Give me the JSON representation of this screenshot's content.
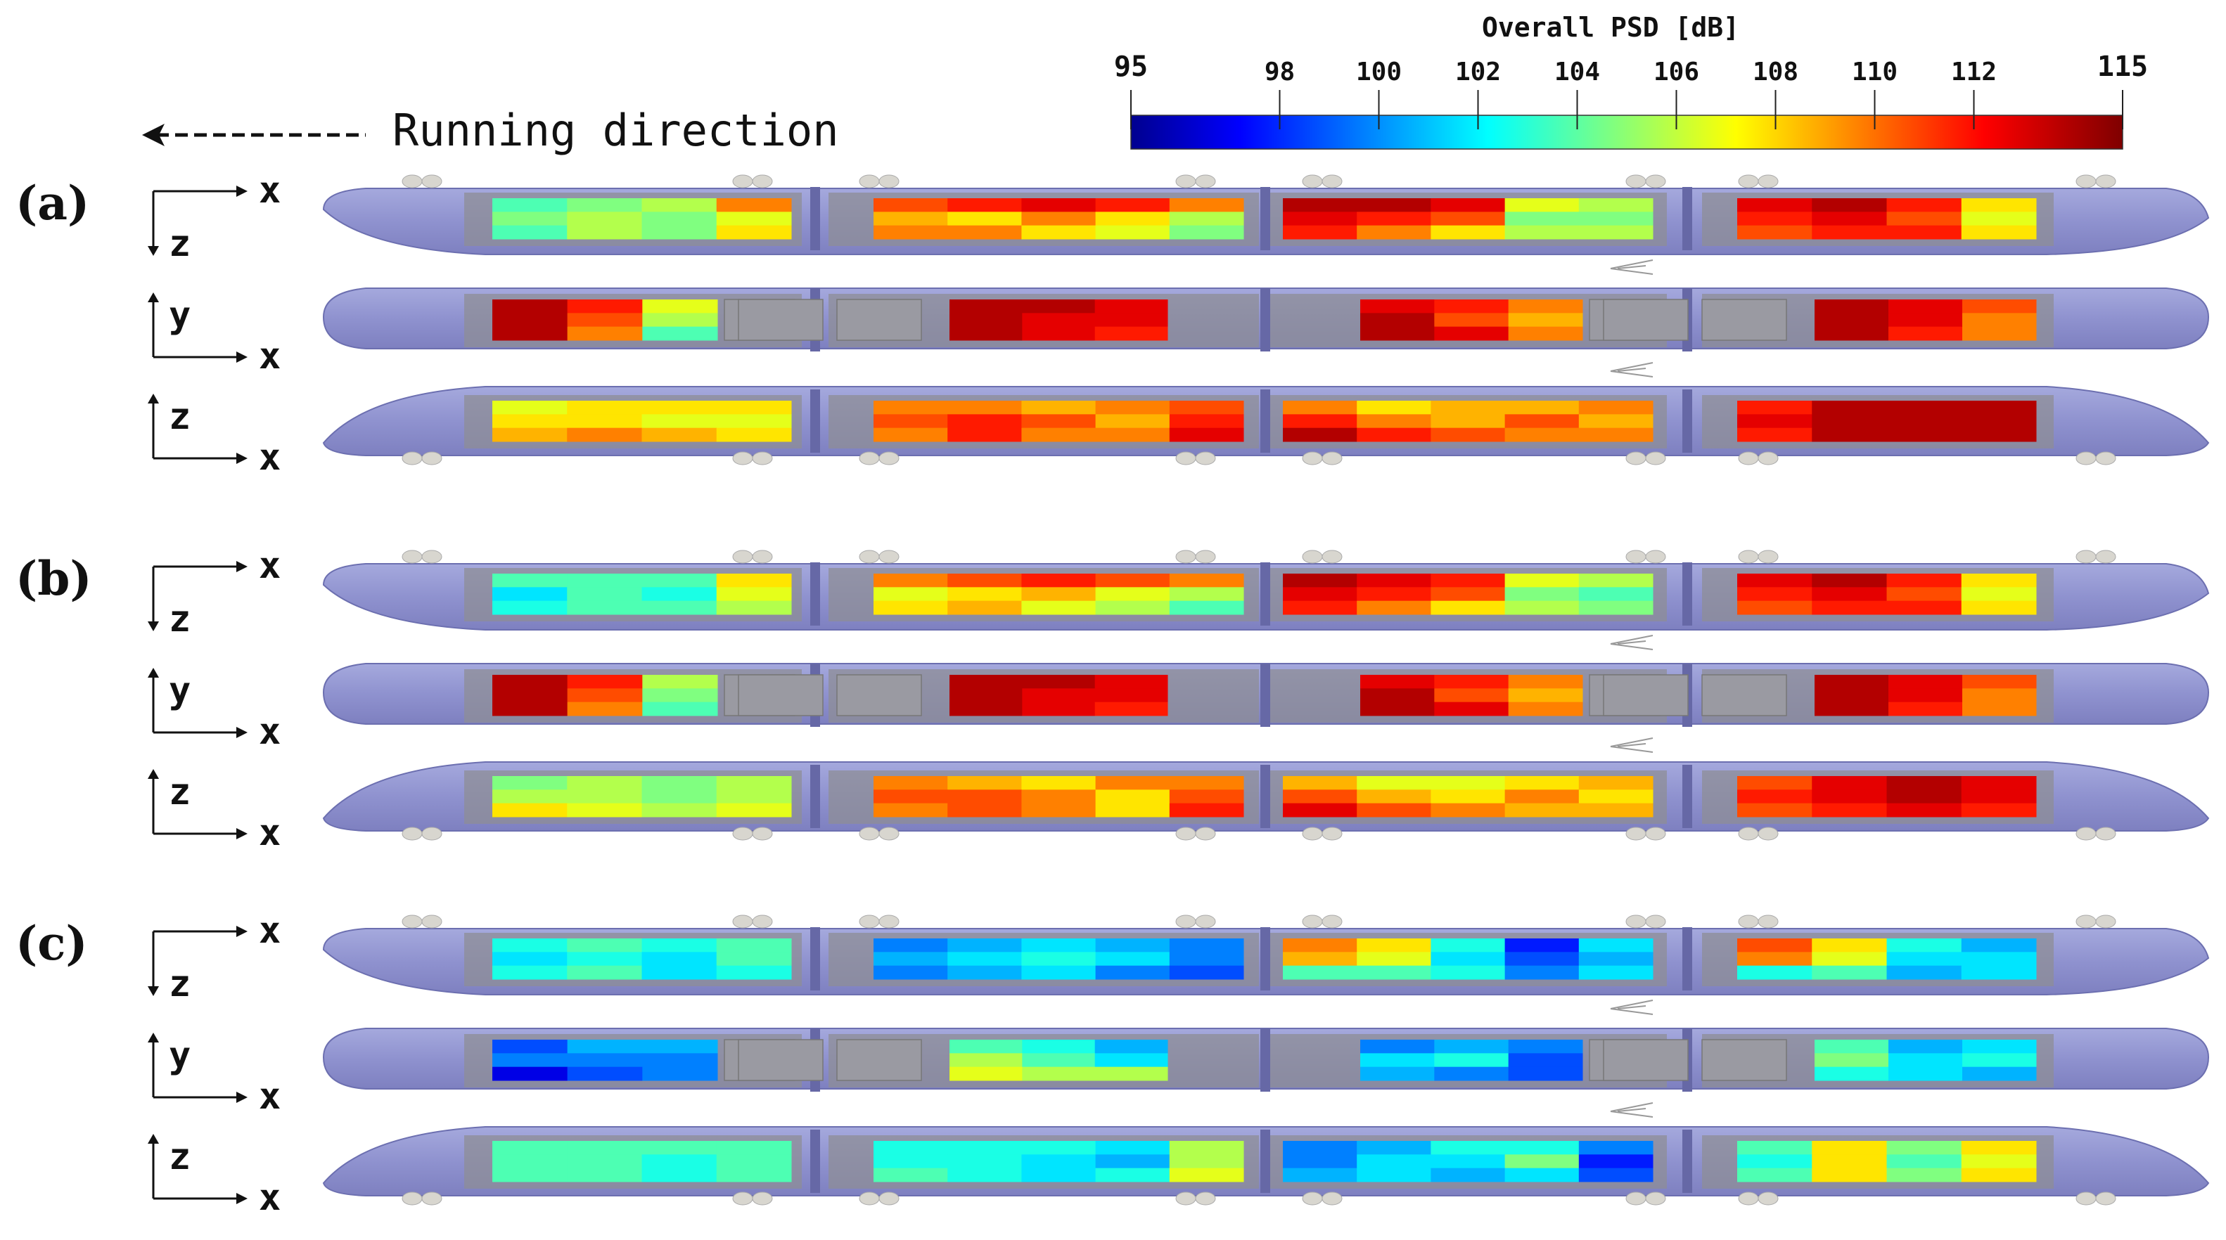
{
  "colorbar": {
    "title": "Overall PSD [dB]",
    "tick_labels": [
      "95",
      "98",
      "100",
      "102",
      "104",
      "106",
      "108",
      "110",
      "112",
      "115"
    ],
    "tick_values": [
      95,
      98,
      100,
      102,
      104,
      106,
      108,
      110,
      112,
      115
    ],
    "range": [
      95,
      115
    ],
    "colormap": "jet"
  },
  "running_direction": {
    "label": "Running direction",
    "arrow": "left"
  },
  "axis_letters": {
    "x": "x",
    "y": "y",
    "z": "z"
  },
  "panels": [
    {
      "label": "(a)",
      "views": [
        {
          "name": "side-top",
          "axes": {
            "horizontal": "x",
            "vertical": "z",
            "vertical_dir": "down"
          },
          "cars": [
            {
              "rows": [
                [
                  104,
                  105,
                  106,
                  110
                ],
                [
                  105,
                  106,
                  105,
                  107
                ],
                [
                  104,
                  106,
                  105,
                  108
                ]
              ]
            },
            {
              "rows": [
                [
                  111,
                  112,
                  113,
                  112,
                  110
                ],
                [
                  109,
                  108,
                  110,
                  108,
                  106
                ],
                [
                  110,
                  110,
                  108,
                  107,
                  105
                ]
              ]
            },
            {
              "rows": [
                [
                  114,
                  114,
                  113,
                  107,
                  106
                ],
                [
                  113,
                  112,
                  111,
                  105,
                  105
                ],
                [
                  112,
                  110,
                  108,
                  106,
                  106
                ]
              ]
            },
            {
              "rows": [
                [
                  113,
                  114,
                  112,
                  108
                ],
                [
                  112,
                  113,
                  111,
                  107
                ],
                [
                  111,
                  112,
                  112,
                  108
                ]
              ]
            }
          ]
        },
        {
          "name": "top",
          "axes": {
            "horizontal": "x",
            "vertical": "y",
            "vertical_dir": "up"
          },
          "cars": [
            {
              "layout": "front",
              "rows": [
                [
                  114,
                  112,
                  107
                ],
                [
                  114,
                  111,
                  106
                ],
                [
                  114,
                  110,
                  104
                ]
              ]
            },
            {
              "layout": "rear",
              "rows": [
                [
                  114,
                  114,
                  113
                ],
                [
                  114,
                  113,
                  113
                ],
                [
                  114,
                  113,
                  112
                ]
              ]
            },
            {
              "layout": "front",
              "rows": [
                [
                  113,
                  112,
                  110
                ],
                [
                  114,
                  111,
                  109
                ],
                [
                  114,
                  113,
                  110
                ]
              ]
            },
            {
              "layout": "rear",
              "rows": [
                [
                  114,
                  113,
                  111
                ],
                [
                  114,
                  113,
                  110
                ],
                [
                  114,
                  112,
                  110
                ]
              ]
            }
          ]
        },
        {
          "name": "side-bottom",
          "axes": {
            "horizontal": "x",
            "vertical": "z",
            "vertical_dir": "up"
          },
          "cars": [
            {
              "rows": [
                [
                  107,
                  108,
                  108,
                  108
                ],
                [
                  108,
                  108,
                  107,
                  107
                ],
                [
                  109,
                  110,
                  109,
                  108
                ]
              ]
            },
            {
              "rows": [
                [
                  110,
                  110,
                  109,
                  110,
                  111
                ],
                [
                  111,
                  112,
                  111,
                  109,
                  112
                ],
                [
                  110,
                  112,
                  110,
                  110,
                  113
                ]
              ]
            },
            {
              "rows": [
                [
                  110,
                  108,
                  109,
                  109,
                  110
                ],
                [
                  112,
                  110,
                  109,
                  111,
                  109
                ],
                [
                  114,
                  112,
                  111,
                  110,
                  110
                ]
              ]
            },
            {
              "rows": [
                [
                  112,
                  114,
                  114,
                  114
                ],
                [
                  113,
                  114,
                  114,
                  114
                ],
                [
                  112,
                  114,
                  114,
                  114
                ]
              ]
            }
          ]
        }
      ]
    },
    {
      "label": "(b)",
      "views": [
        {
          "name": "side-top",
          "axes": {
            "horizontal": "x",
            "vertical": "z",
            "vertical_dir": "down"
          },
          "cars": [
            {
              "rows": [
                [
                  104,
                  104,
                  104,
                  108
                ],
                [
                  102,
                  104,
                  103,
                  107
                ],
                [
                  103,
                  104,
                  104,
                  106
                ]
              ]
            },
            {
              "rows": [
                [
                  110,
                  111,
                  112,
                  111,
                  110
                ],
                [
                  107,
                  108,
                  109,
                  107,
                  106
                ],
                [
                  108,
                  109,
                  107,
                  106,
                  104
                ]
              ]
            },
            {
              "rows": [
                [
                  114,
                  113,
                  112,
                  107,
                  106
                ],
                [
                  113,
                  112,
                  111,
                  105,
                  104
                ],
                [
                  112,
                  110,
                  108,
                  106,
                  105
                ]
              ]
            },
            {
              "rows": [
                [
                  113,
                  114,
                  112,
                  108
                ],
                [
                  112,
                  113,
                  111,
                  107
                ],
                [
                  111,
                  112,
                  112,
                  108
                ]
              ]
            }
          ]
        },
        {
          "name": "top",
          "axes": {
            "horizontal": "x",
            "vertical": "y",
            "vertical_dir": "up"
          },
          "cars": [
            {
              "layout": "front",
              "rows": [
                [
                  114,
                  112,
                  106
                ],
                [
                  114,
                  111,
                  105
                ],
                [
                  114,
                  110,
                  104
                ]
              ]
            },
            {
              "layout": "rear",
              "rows": [
                [
                  114,
                  114,
                  113
                ],
                [
                  114,
                  113,
                  113
                ],
                [
                  114,
                  113,
                  112
                ]
              ]
            },
            {
              "layout": "front",
              "rows": [
                [
                  113,
                  112,
                  110
                ],
                [
                  114,
                  111,
                  109
                ],
                [
                  114,
                  113,
                  110
                ]
              ]
            },
            {
              "layout": "rear",
              "rows": [
                [
                  114,
                  113,
                  111
                ],
                [
                  114,
                  113,
                  110
                ],
                [
                  114,
                  112,
                  110
                ]
              ]
            }
          ]
        },
        {
          "name": "side-bottom",
          "axes": {
            "horizontal": "x",
            "vertical": "z",
            "vertical_dir": "up"
          },
          "cars": [
            {
              "rows": [
                [
                  105,
                  106,
                  105,
                  106
                ],
                [
                  106,
                  106,
                  105,
                  106
                ],
                [
                  108,
                  107,
                  106,
                  107
                ]
              ]
            },
            {
              "rows": [
                [
                  110,
                  109,
                  108,
                  110,
                  110
                ],
                [
                  111,
                  111,
                  110,
                  108,
                  111
                ],
                [
                  110,
                  111,
                  110,
                  108,
                  112
                ]
              ]
            },
            {
              "rows": [
                [
                  109,
                  107,
                  107,
                  108,
                  109
                ],
                [
                  111,
                  109,
                  108,
                  110,
                  108
                ],
                [
                  113,
                  111,
                  110,
                  109,
                  109
                ]
              ]
            },
            {
              "rows": [
                [
                  111,
                  113,
                  114,
                  113
                ],
                [
                  112,
                  113,
                  114,
                  113
                ],
                [
                  111,
                  112,
                  113,
                  112
                ]
              ]
            }
          ]
        }
      ]
    },
    {
      "label": "(c)",
      "views": [
        {
          "name": "side-top",
          "axes": {
            "horizontal": "x",
            "vertical": "z",
            "vertical_dir": "down"
          },
          "cars": [
            {
              "rows": [
                [
                  103,
                  104,
                  103,
                  104
                ],
                [
                  102,
                  103,
                  102,
                  104
                ],
                [
                  103,
                  104,
                  102,
                  103
                ]
              ]
            },
            {
              "rows": [
                [
                  100,
                  101,
                  102,
                  101,
                  100
                ],
                [
                  101,
                  102,
                  103,
                  102,
                  100
                ],
                [
                  100,
                  101,
                  102,
                  100,
                  99
                ]
              ]
            },
            {
              "rows": [
                [
                  110,
                  108,
                  103,
                  98,
                  102
                ],
                [
                  109,
                  107,
                  102,
                  99,
                  101
                ],
                [
                  104,
                  104,
                  103,
                  100,
                  102
                ]
              ]
            },
            {
              "rows": [
                [
                  111,
                  108,
                  103,
                  101
                ],
                [
                  110,
                  107,
                  102,
                  102
                ],
                [
                  103,
                  104,
                  101,
                  102
                ]
              ]
            }
          ]
        },
        {
          "name": "top",
          "axes": {
            "horizontal": "x",
            "vertical": "y",
            "vertical_dir": "up"
          },
          "cars": [
            {
              "layout": "front",
              "rows": [
                [
                  99,
                  101,
                  101
                ],
                [
                  100,
                  100,
                  100
                ],
                [
                  97,
                  99,
                  100
                ]
              ]
            },
            {
              "layout": "rear",
              "rows": [
                [
                  104,
                  103,
                  101
                ],
                [
                  106,
                  104,
                  102
                ],
                [
                  107,
                  106,
                  106
                ]
              ]
            },
            {
              "layout": "front",
              "rows": [
                [
                  100,
                  101,
                  100
                ],
                [
                  102,
                  103,
                  99
                ],
                [
                  101,
                  100,
                  99
                ]
              ]
            },
            {
              "layout": "rear",
              "rows": [
                [
                  104,
                  101,
                  102
                ],
                [
                  105,
                  102,
                  103
                ],
                [
                  103,
                  102,
                  101
                ]
              ]
            }
          ]
        },
        {
          "name": "side-bottom",
          "axes": {
            "horizontal": "x",
            "vertical": "z",
            "vertical_dir": "up"
          },
          "cars": [
            {
              "rows": [
                [
                  104,
                  104,
                  104,
                  104
                ],
                [
                  104,
                  104,
                  103,
                  104
                ],
                [
                  104,
                  104,
                  103,
                  104
                ]
              ]
            },
            {
              "rows": [
                [
                  103,
                  103,
                  103,
                  102,
                  106
                ],
                [
                  103,
                  103,
                  102,
                  101,
                  106
                ],
                [
                  104,
                  103,
                  102,
                  103,
                  107
                ]
              ]
            },
            {
              "rows": [
                [
                  100,
                  101,
                  103,
                  103,
                  100
                ],
                [
                  100,
                  102,
                  102,
                  105,
                  98
                ],
                [
                  101,
                  102,
                  101,
                  102,
                  99
                ]
              ]
            },
            {
              "rows": [
                [
                  104,
                  108,
                  105,
                  108
                ],
                [
                  103,
                  108,
                  104,
                  107
                ],
                [
                  104,
                  108,
                  105,
                  108
                ]
              ]
            }
          ]
        }
      ]
    }
  ]
}
